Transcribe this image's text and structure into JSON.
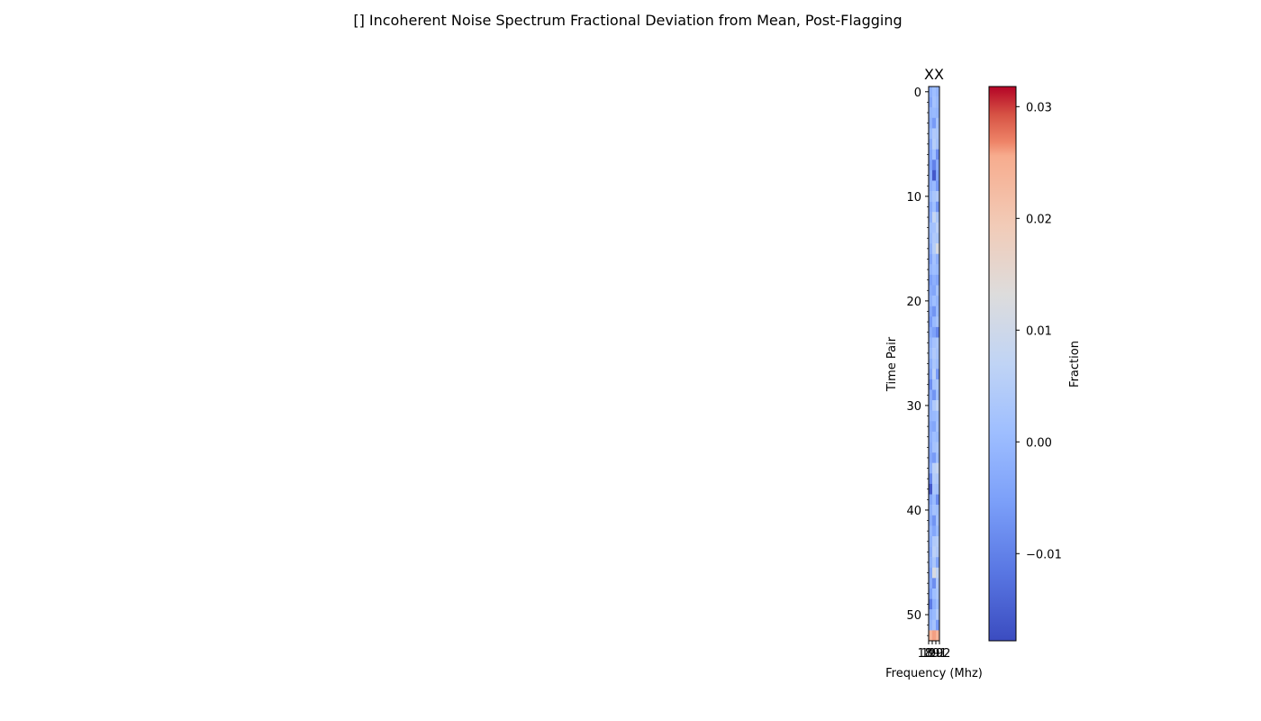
{
  "figure": {
    "title": "[] Incoherent Noise Spectrum Fractional Deviation from Mean, Post-Flagging"
  },
  "chart_data": {
    "type": "heatmap",
    "title": "XX",
    "xlabel": "Frequency (Mhz)",
    "ylabel": "Time Pair",
    "colorbar_label": "Fraction",
    "colormap": "coolwarm",
    "vmin": -0.0178,
    "vmax": 0.0318,
    "n_rows": 53,
    "n_cols": 3,
    "y_ticks": [
      0,
      10,
      20,
      30,
      40,
      50
    ],
    "y_tick_labels": [
      "0",
      "10",
      "20",
      "30",
      "40",
      "50"
    ],
    "x_tick_labels": [
      "189",
      "190",
      "191",
      "192"
    ],
    "x_tick_positions": [
      -0.5,
      0.5,
      1.5,
      2.5
    ],
    "colorbar_ticks": [
      -0.01,
      0.0,
      0.01,
      0.02,
      0.03
    ],
    "colorbar_tick_labels": [
      "−0.01",
      "0.00",
      "0.01",
      "0.02",
      "0.03"
    ],
    "values": [
      [
        -0.002,
        0.001,
        -0.001
      ],
      [
        -0.004,
        0.002,
        0.0
      ],
      [
        -0.001,
        0.0,
        -0.001
      ],
      [
        -0.002,
        -0.006,
        0.002
      ],
      [
        0.0,
        0.004,
        0.003
      ],
      [
        -0.003,
        0.005,
        0.002
      ],
      [
        -0.004,
        0.001,
        -0.008
      ],
      [
        -0.005,
        -0.01,
        -0.003
      ],
      [
        -0.003,
        -0.016,
        -0.004
      ],
      [
        -0.002,
        0.0,
        -0.006
      ],
      [
        0.0,
        0.003,
        0.004
      ],
      [
        -0.003,
        0.001,
        -0.007
      ],
      [
        -0.002,
        0.008,
        0.003
      ],
      [
        0.001,
        0.002,
        0.006
      ],
      [
        0.0,
        0.004,
        0.003
      ],
      [
        -0.002,
        0.005,
        0.012
      ],
      [
        -0.004,
        0.002,
        -0.002
      ],
      [
        -0.001,
        0.001,
        0.0
      ],
      [
        -0.005,
        -0.002,
        -0.004
      ],
      [
        -0.003,
        -0.004,
        0.002
      ],
      [
        -0.002,
        0.001,
        -0.001
      ],
      [
        -0.004,
        -0.007,
        0.0
      ],
      [
        -0.006,
        0.0,
        0.002
      ],
      [
        -0.003,
        -0.005,
        -0.009
      ],
      [
        -0.001,
        0.002,
        0.003
      ],
      [
        0.0,
        0.004,
        0.002
      ],
      [
        -0.002,
        0.003,
        0.001
      ],
      [
        -0.004,
        0.006,
        -0.006
      ],
      [
        -0.008,
        0.002,
        0.003
      ],
      [
        -0.003,
        -0.007,
        0.001
      ],
      [
        -0.002,
        0.004,
        0.007
      ],
      [
        -0.001,
        0.0,
        0.001
      ],
      [
        -0.003,
        -0.004,
        0.002
      ],
      [
        -0.002,
        0.001,
        0.0
      ],
      [
        -0.003,
        0.002,
        0.003
      ],
      [
        -0.004,
        -0.006,
        0.001
      ],
      [
        -0.002,
        0.006,
        0.008
      ],
      [
        -0.009,
        0.005,
        0.004
      ],
      [
        -0.016,
        0.003,
        0.002
      ],
      [
        -0.004,
        0.0,
        -0.008
      ],
      [
        -0.002,
        0.002,
        0.001
      ],
      [
        -0.003,
        -0.007,
        0.002
      ],
      [
        -0.001,
        -0.004,
        0.0
      ],
      [
        -0.002,
        0.004,
        0.005
      ],
      [
        -0.003,
        0.006,
        0.004
      ],
      [
        -0.002,
        0.003,
        -0.004
      ],
      [
        -0.004,
        0.012,
        0.007
      ],
      [
        -0.003,
        -0.008,
        0.004
      ],
      [
        -0.005,
        0.001,
        0.003
      ],
      [
        -0.011,
        -0.002,
        0.001
      ],
      [
        -0.002,
        0.0,
        0.004
      ],
      [
        -0.001,
        0.002,
        -0.006
      ],
      [
        0.024,
        0.026,
        0.024
      ]
    ]
  }
}
